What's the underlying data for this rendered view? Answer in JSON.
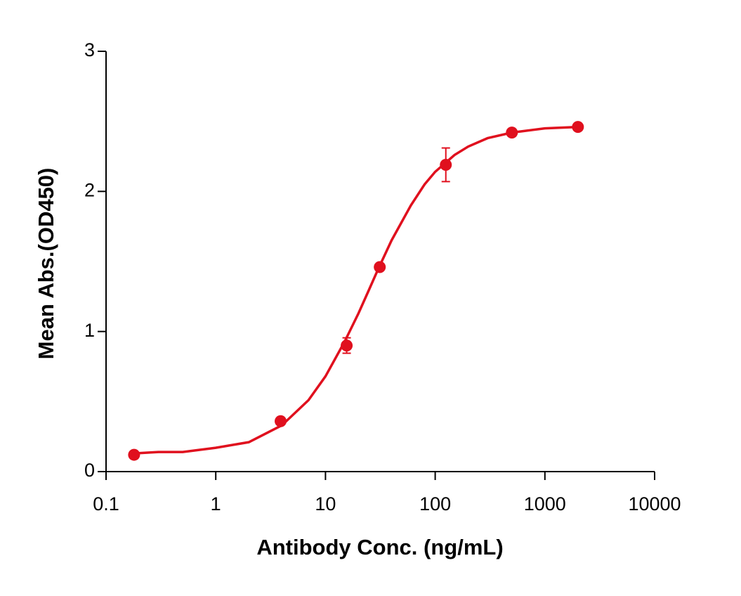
{
  "chart_data": {
    "type": "scatter",
    "x_label": "Antibody Conc. (ng/mL)",
    "y_label": "Mean Abs.(OD450)",
    "x_scale": "log",
    "xlim": [
      0.1,
      10000
    ],
    "xticks": [
      0.1,
      1,
      10,
      100,
      1000,
      10000
    ],
    "ylim": [
      0,
      3
    ],
    "yticks": [
      0,
      1,
      2,
      3
    ],
    "color": "#e0101e",
    "x": [
      0.18,
      3.9,
      15.6,
      31.25,
      125,
      500,
      2000
    ],
    "values": [
      0.12,
      0.36,
      0.9,
      1.46,
      2.19,
      2.42,
      2.46
    ],
    "errors": [
      null,
      null,
      0.055,
      null,
      0.12,
      null,
      null
    ],
    "fit_x": [
      0.18,
      0.3,
      0.5,
      1,
      2,
      4,
      7,
      10,
      15,
      20,
      25,
      30,
      40,
      60,
      80,
      100,
      150,
      200,
      300,
      500,
      1000,
      2000
    ],
    "fit_values": [
      0.13,
      0.14,
      0.14,
      0.17,
      0.21,
      0.33,
      0.51,
      0.68,
      0.93,
      1.13,
      1.3,
      1.44,
      1.65,
      1.9,
      2.05,
      2.14,
      2.26,
      2.32,
      2.38,
      2.42,
      2.45,
      2.46
    ]
  }
}
